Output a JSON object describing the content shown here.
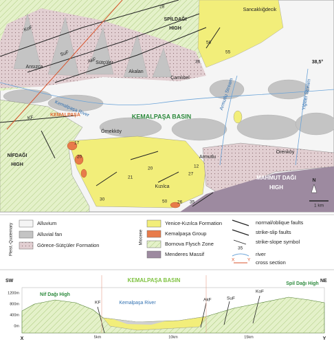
{
  "map": {
    "labels": [
      "SPİLDAĞI",
      "HIGH",
      "28",
      "Sancaklıiğdecik",
      "Ansızca",
      "Sütçüler",
      "Akalan",
      "Çamlıbel",
      "58",
      "55",
      "36",
      "38,5°",
      "KoF",
      "SuF",
      "AkF",
      "Kemalpaşa River",
      "KEMALPAŞA BASIN",
      "KEMALPAŞA",
      "Armutlu Stream",
      "Yiğitler Stream",
      "Örnekköy",
      "Armutlu",
      "Örenköy",
      "NİFDAĞI",
      "HIGH",
      "KF",
      "17",
      "20",
      "20",
      "21",
      "30",
      "12",
      "27",
      "Kızılca",
      "50",
      "26",
      "35",
      "MAHMUT DAĞI",
      "HIGH",
      "N",
      "1 km"
    ]
  },
  "legend": {
    "groups": [
      "Pleist.-Quaternary",
      "Miocene"
    ],
    "units": [
      "Alluvium",
      "Alluvial fan",
      "Görece-Sütçüler Formation",
      "Yenice-Kızılca Formation",
      "Kemalpaşa Group",
      "Bornova Flysch Zone",
      "Menderes Massif"
    ],
    "symbols": [
      "normal/oblique faults",
      "strike-slip faults",
      "strike-slope symbol",
      "35",
      "river",
      "X",
      "Y",
      "cross section"
    ]
  },
  "section": {
    "labels": [
      "SW",
      "NE",
      "Nif Dağı High",
      "KEMALPAŞA BASIN",
      "Spil Dağı High",
      "KF",
      "Kemalpaşa River",
      "AkF",
      "SuF",
      "KoF"
    ],
    "elevations": [
      "1200m",
      "800m",
      "400m",
      "0m"
    ],
    "distances": [
      "X",
      "5km",
      "10km",
      "15km",
      "Y"
    ]
  }
}
